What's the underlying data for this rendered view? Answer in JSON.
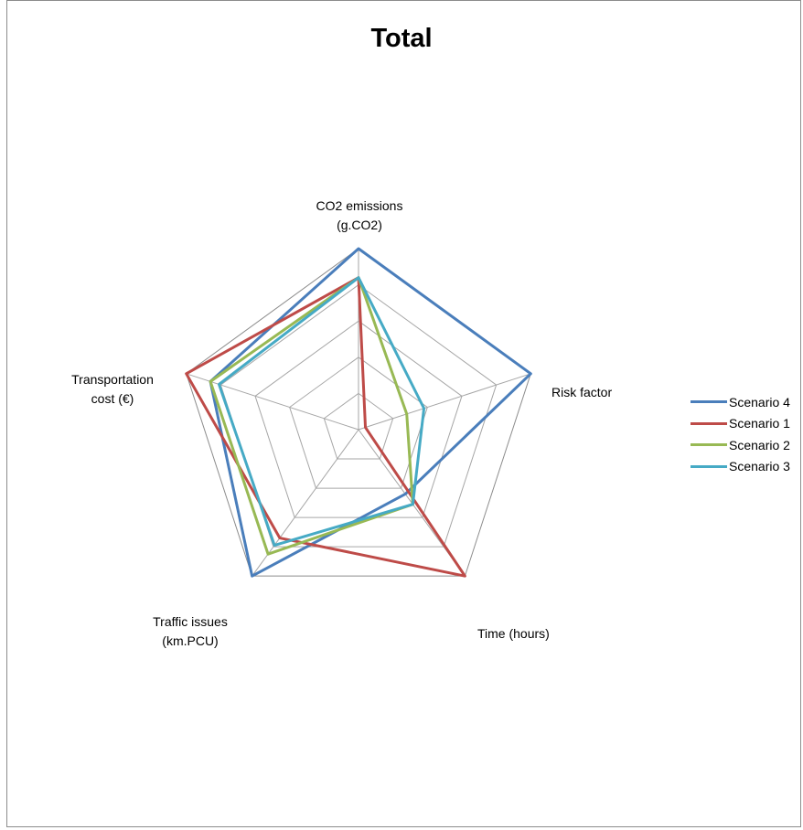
{
  "chart_data": {
    "type": "radar",
    "title": "Total",
    "axes": [
      {
        "line1": "CO2 emissions",
        "line2": "(g.CO2)"
      },
      {
        "line1": "Risk factor",
        "line2": ""
      },
      {
        "line1": "Time (hours)",
        "line2": ""
      },
      {
        "line1": "Traffic issues",
        "line2": "(km.PCU)"
      },
      {
        "line1": "Transportation",
        "line2": "cost (€)"
      }
    ],
    "rlim": [
      0,
      1
    ],
    "gridlines": 5,
    "legend_position": "right",
    "series": [
      {
        "name": "Scenario 4",
        "color": "#4a7ebb",
        "values": [
          1.0,
          1.0,
          0.44,
          1.0,
          0.86
        ]
      },
      {
        "name": "Scenario 1",
        "color": "#be4b48",
        "values": [
          0.84,
          0.04,
          1.0,
          0.74,
          1.0
        ]
      },
      {
        "name": "Scenario 2",
        "color": "#98b954",
        "values": [
          0.84,
          0.28,
          0.51,
          0.85,
          0.86
        ]
      },
      {
        "name": "Scenario 3",
        "color": "#46aac5",
        "values": [
          0.84,
          0.38,
          0.51,
          0.79,
          0.81
        ]
      }
    ]
  }
}
